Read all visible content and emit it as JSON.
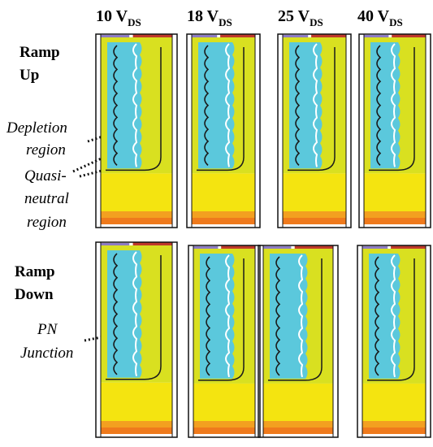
{
  "figure": {
    "columns": [
      {
        "label": "10 V",
        "subscript": "DS"
      },
      {
        "label": "18 V",
        "subscript": "DS"
      },
      {
        "label": "25 V",
        "subscript": "DS"
      },
      {
        "label": "40 V",
        "subscript": "DS"
      }
    ],
    "rows": [
      {
        "label_line1": "Ramp",
        "label_line2": "Up"
      },
      {
        "label_line1": "Ramp",
        "label_line2": "Down"
      }
    ],
    "annotations": {
      "depletion_line1": "Depletion",
      "depletion_line2": "region",
      "quasi_line1": "Quasi-",
      "quasi_line2": "neutral",
      "quasi_line3": "region",
      "pn_line1": "PN",
      "pn_line2": "Junction"
    },
    "colors": {
      "depletion": "#5bc8dc",
      "quasi_neutral": "#d9e020",
      "substrate": "#f4e410",
      "substrate_edge": "#f3a020",
      "substrate_bottom": "#ef7a1c",
      "top_contact": "#c0392b",
      "outline": "#111111"
    }
  }
}
